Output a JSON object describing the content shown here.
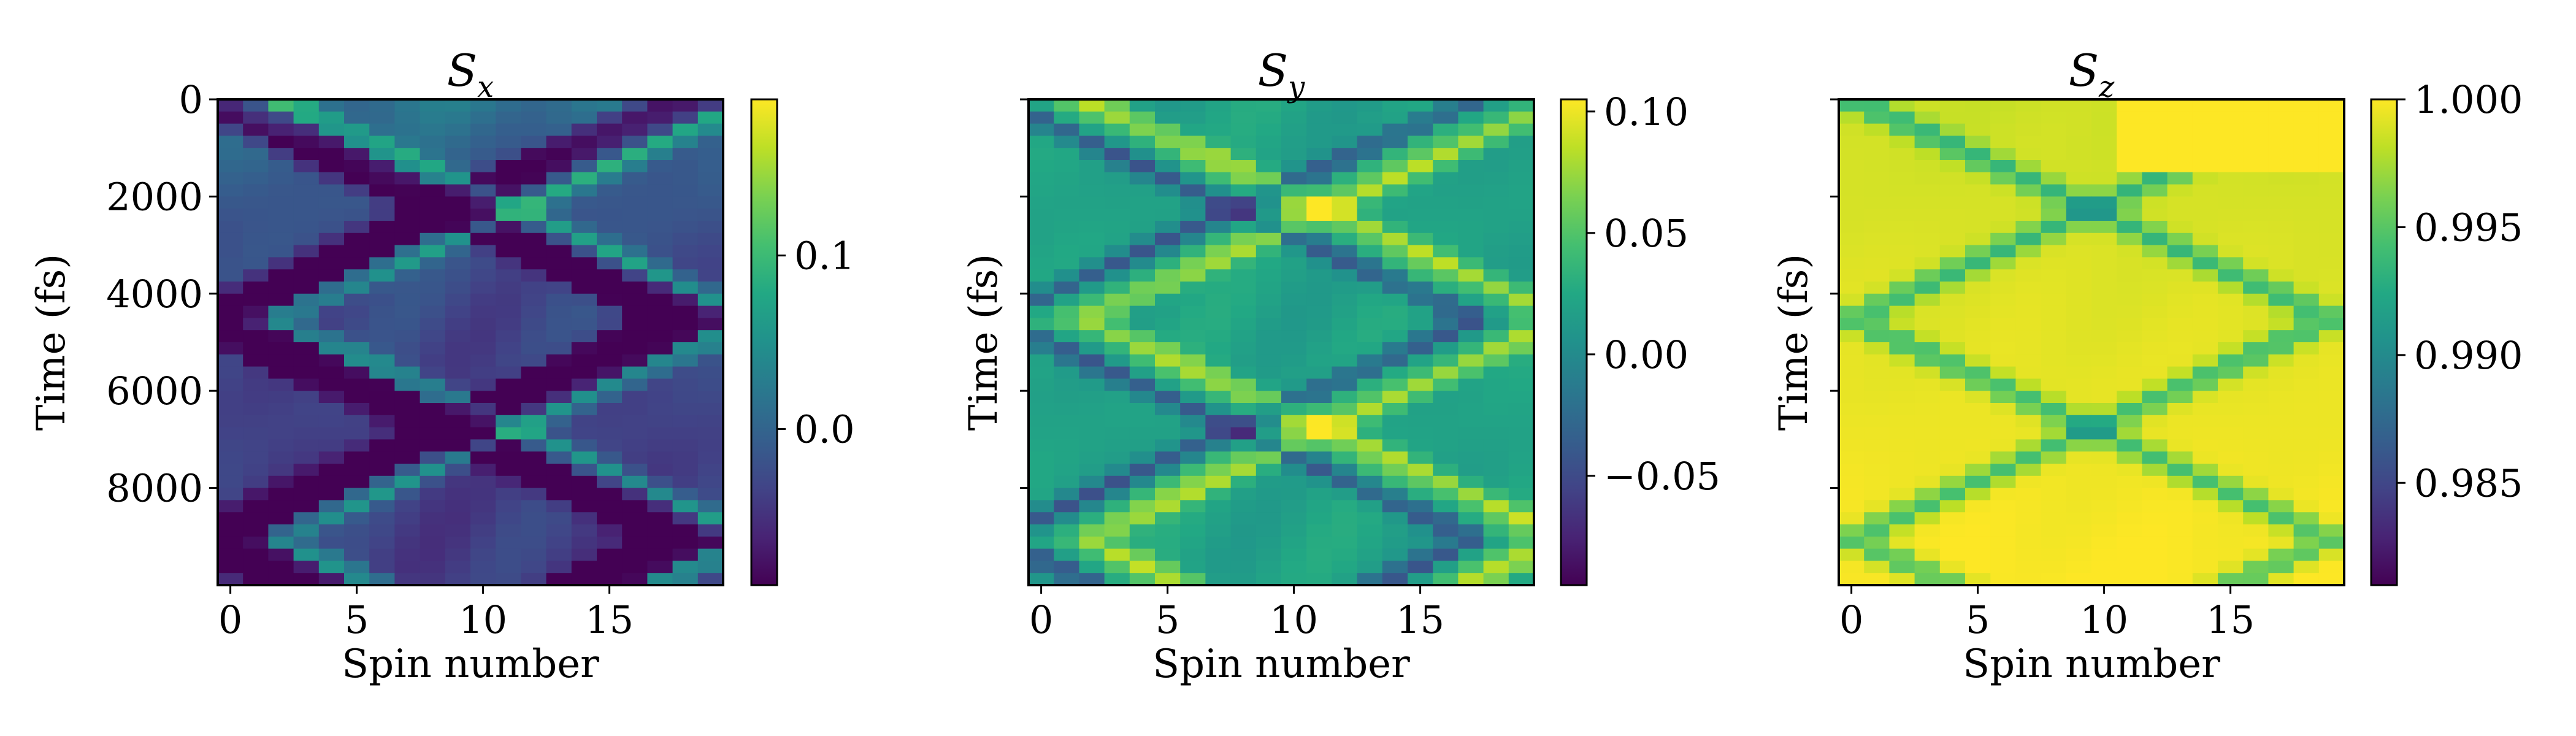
{
  "chart_data": [
    {
      "type": "heatmap",
      "title_symbol": "S",
      "title_subscript": "x",
      "xlabel": "Spin number",
      "ylabel": "Time (fs)",
      "n_spins": 20,
      "xlim": [
        0,
        19
      ],
      "ylim": [
        10000,
        0
      ],
      "xticks": [
        0,
        5,
        10,
        15
      ],
      "xtick_labels": [
        "0",
        "5",
        "10",
        "15"
      ],
      "yticks": [
        0,
        2000,
        4000,
        6000,
        8000
      ],
      "ytick_labels": [
        "0",
        "2000",
        "4000",
        "6000",
        "8000"
      ],
      "show_ytick_labels": true,
      "show_ylabel": true,
      "colorbar": {
        "min": -0.09,
        "max": 0.19,
        "ticks": [
          0.0,
          0.1
        ],
        "tick_labels": [
          "0.0",
          "0.1"
        ],
        "colormap": "viridis"
      },
      "pattern": {
        "base": 0.02,
        "amplitude": 0.17,
        "background_bias": -0.06,
        "front_speed_spins_per_fs": 0.0042
      }
    },
    {
      "type": "heatmap",
      "title_symbol": "S",
      "title_subscript": "y",
      "xlabel": "Spin number",
      "ylabel": "Time (fs)",
      "n_spins": 20,
      "xlim": [
        0,
        19
      ],
      "ylim": [
        10000,
        0
      ],
      "xticks": [
        0,
        5,
        10,
        15
      ],
      "xtick_labels": [
        "0",
        "5",
        "10",
        "15"
      ],
      "yticks": [
        0,
        2000,
        4000,
        6000,
        8000
      ],
      "ytick_labels": [],
      "show_ytick_labels": false,
      "show_ylabel": true,
      "colorbar": {
        "min": -0.095,
        "max": 0.105,
        "ticks": [
          -0.05,
          0.0,
          0.05,
          0.1
        ],
        "tick_labels": [
          "−0.05",
          "0.00",
          "0.05",
          "0.10"
        ],
        "colormap": "viridis"
      },
      "pattern": {
        "base": 0.0,
        "amplitude": 0.1,
        "background_bias": 0.02,
        "front_speed_spins_per_fs": 0.0042
      }
    },
    {
      "type": "heatmap",
      "title_symbol": "S",
      "title_subscript": "z",
      "xlabel": "Spin number",
      "ylabel": "Time (fs)",
      "n_spins": 20,
      "xlim": [
        0,
        19
      ],
      "ylim": [
        10000,
        0
      ],
      "xticks": [
        0,
        5,
        10,
        15
      ],
      "xtick_labels": [
        "0",
        "5",
        "10",
        "15"
      ],
      "yticks": [
        0,
        2000,
        4000,
        6000,
        8000
      ],
      "ytick_labels": [],
      "show_ytick_labels": false,
      "show_ylabel": true,
      "colorbar": {
        "min": 0.981,
        "max": 1.0,
        "ticks": [
          0.985,
          0.99,
          0.995,
          1.0
        ],
        "tick_labels": [
          "0.985",
          "0.990",
          "0.995",
          "1.000"
        ],
        "colormap": "viridis"
      },
      "pattern": {
        "base": 0.9985,
        "amplitude": 0.006,
        "background_bias": 0.0015,
        "front_speed_spins_per_fs": 0.0042
      }
    }
  ]
}
